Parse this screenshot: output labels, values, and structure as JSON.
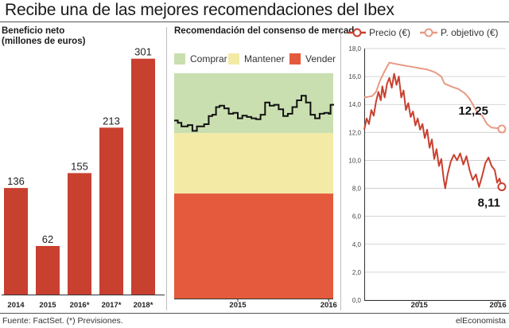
{
  "title": "Recibe una de las mejores recomendaciones del Ibex",
  "footer": {
    "source": "Fuente: FactSet. (*) Previsiones.",
    "brand": "elEconomista"
  },
  "colors": {
    "bar": "#c8402f",
    "comprar": "#c9dfb0",
    "mantener": "#f3eba5",
    "vender": "#e55a3c",
    "precio": "#c8402f",
    "objetivo": "#e89a84",
    "consenso_line": "#111111"
  },
  "chart_data": [
    {
      "type": "bar",
      "title": "Beneficio neto",
      "subtitle": "(millones de euros)",
      "categories": [
        "2014",
        "2015",
        "2016*",
        "2017*",
        "2018*"
      ],
      "values": [
        136,
        62,
        155,
        213,
        301
      ],
      "value_labels": [
        "136",
        "62",
        "155",
        "213",
        "301"
      ],
      "ylim": [
        0,
        320
      ],
      "legend": "none"
    },
    {
      "type": "line",
      "title": "Recomendación del consenso de mercado",
      "legend_entries": [
        "Comprar",
        "Mantener",
        "Vender"
      ],
      "x_ticks": [
        "2015",
        "2016"
      ],
      "bands": [
        {
          "name": "Comprar",
          "from": 3.67,
          "to": 5.0
        },
        {
          "name": "Mantener",
          "from": 2.33,
          "to": 3.67
        },
        {
          "name": "Vender",
          "from": 0.0,
          "to": 2.33
        }
      ],
      "ylim": [
        0,
        5
      ],
      "x_range": [
        2014.3,
        2016.05
      ],
      "series": [
        {
          "values": [
            [
              2014.3,
              3.95
            ],
            [
              2014.34,
              3.9
            ],
            [
              2014.38,
              3.82
            ],
            [
              2014.45,
              3.85
            ],
            [
              2014.5,
              3.72
            ],
            [
              2014.55,
              3.82
            ],
            [
              2014.63,
              3.87
            ],
            [
              2014.68,
              4.05
            ],
            [
              2014.72,
              4.08
            ],
            [
              2014.76,
              4.25
            ],
            [
              2014.8,
              4.28
            ],
            [
              2014.85,
              4.22
            ],
            [
              2014.9,
              4.1
            ],
            [
              2014.95,
              4.12
            ],
            [
              2015.0,
              4.0
            ],
            [
              2015.05,
              4.06
            ],
            [
              2015.1,
              4.03
            ],
            [
              2015.15,
              4.0
            ],
            [
              2015.2,
              3.98
            ],
            [
              2015.25,
              4.08
            ],
            [
              2015.3,
              4.35
            ],
            [
              2015.35,
              4.28
            ],
            [
              2015.4,
              4.3
            ],
            [
              2015.45,
              4.2
            ],
            [
              2015.5,
              4.05
            ],
            [
              2015.55,
              4.1
            ],
            [
              2015.6,
              4.25
            ],
            [
              2015.65,
              4.4
            ],
            [
              2015.7,
              4.5
            ],
            [
              2015.75,
              4.35
            ],
            [
              2015.8,
              4.08
            ],
            [
              2015.85,
              4.0
            ],
            [
              2015.9,
              4.1
            ],
            [
              2015.95,
              4.12
            ],
            [
              2016.0,
              4.1
            ],
            [
              2016.02,
              4.3
            ],
            [
              2016.05,
              4.32
            ]
          ]
        }
      ]
    },
    {
      "type": "line",
      "legend": "top",
      "ylim": [
        0,
        18
      ],
      "y_ticks": [
        "0,0",
        "2,0",
        "4,0",
        "6,0",
        "8,0",
        "10,0",
        "12,0",
        "14,0",
        "16,0",
        "18,0"
      ],
      "x_ticks": [
        "2015",
        "2016"
      ],
      "x_range": [
        2014.3,
        2016.05
      ],
      "annotations": [
        "12,25",
        "8,11"
      ],
      "series": [
        {
          "name": "Precio (€)",
          "values": [
            [
              2014.3,
              12.2
            ],
            [
              2014.33,
              13.0
            ],
            [
              2014.36,
              12.6
            ],
            [
              2014.39,
              13.6
            ],
            [
              2014.42,
              13.2
            ],
            [
              2014.45,
              14.2
            ],
            [
              2014.48,
              14.9
            ],
            [
              2014.51,
              14.3
            ],
            [
              2014.53,
              15.3
            ],
            [
              2014.56,
              14.5
            ],
            [
              2014.59,
              15.5
            ],
            [
              2014.62,
              15.9
            ],
            [
              2014.65,
              15.2
            ],
            [
              2014.68,
              16.2
            ],
            [
              2014.71,
              15.4
            ],
            [
              2014.74,
              16.0
            ],
            [
              2014.77,
              14.5
            ],
            [
              2014.8,
              15.0
            ],
            [
              2014.83,
              13.6
            ],
            [
              2014.86,
              14.1
            ],
            [
              2014.89,
              13.1
            ],
            [
              2014.92,
              13.5
            ],
            [
              2014.95,
              12.5
            ],
            [
              2014.98,
              13.0
            ],
            [
              2015.01,
              12.2
            ],
            [
              2015.04,
              12.6
            ],
            [
              2015.07,
              11.6
            ],
            [
              2015.1,
              12.2
            ],
            [
              2015.13,
              10.9
            ],
            [
              2015.16,
              11.5
            ],
            [
              2015.19,
              10.1
            ],
            [
              2015.22,
              10.8
            ],
            [
              2015.25,
              9.6
            ],
            [
              2015.28,
              10.1
            ],
            [
              2015.31,
              8.7
            ],
            [
              2015.33,
              8.0
            ],
            [
              2015.36,
              9.0
            ],
            [
              2015.4,
              9.9
            ],
            [
              2015.44,
              10.4
            ],
            [
              2015.48,
              10.0
            ],
            [
              2015.52,
              10.5
            ],
            [
              2015.56,
              9.7
            ],
            [
              2015.6,
              10.3
            ],
            [
              2015.64,
              9.3
            ],
            [
              2015.68,
              8.6
            ],
            [
              2015.72,
              9.0
            ],
            [
              2015.76,
              8.1
            ],
            [
              2015.8,
              8.9
            ],
            [
              2015.84,
              9.8
            ],
            [
              2015.88,
              10.2
            ],
            [
              2015.92,
              9.6
            ],
            [
              2015.96,
              9.3
            ],
            [
              2015.99,
              8.4
            ],
            [
              2016.02,
              8.7
            ],
            [
              2016.05,
              8.11
            ]
          ]
        },
        {
          "name": "P. objetivo (€)",
          "values": [
            [
              2014.3,
              14.5
            ],
            [
              2014.4,
              14.6
            ],
            [
              2014.45,
              14.9
            ],
            [
              2014.5,
              15.7
            ],
            [
              2014.56,
              16.4
            ],
            [
              2014.62,
              17.0
            ],
            [
              2014.7,
              16.9
            ],
            [
              2014.8,
              16.8
            ],
            [
              2014.9,
              16.7
            ],
            [
              2015.0,
              16.6
            ],
            [
              2015.1,
              16.5
            ],
            [
              2015.2,
              16.3
            ],
            [
              2015.28,
              16.0
            ],
            [
              2015.32,
              15.5
            ],
            [
              2015.4,
              15.3
            ],
            [
              2015.5,
              15.1
            ],
            [
              2015.58,
              14.8
            ],
            [
              2015.64,
              14.4
            ],
            [
              2015.7,
              13.8
            ],
            [
              2015.74,
              13.4
            ],
            [
              2015.8,
              13.2
            ],
            [
              2015.86,
              12.6
            ],
            [
              2015.92,
              12.35
            ],
            [
              2016.0,
              12.3
            ],
            [
              2016.05,
              12.25
            ]
          ]
        }
      ]
    }
  ]
}
